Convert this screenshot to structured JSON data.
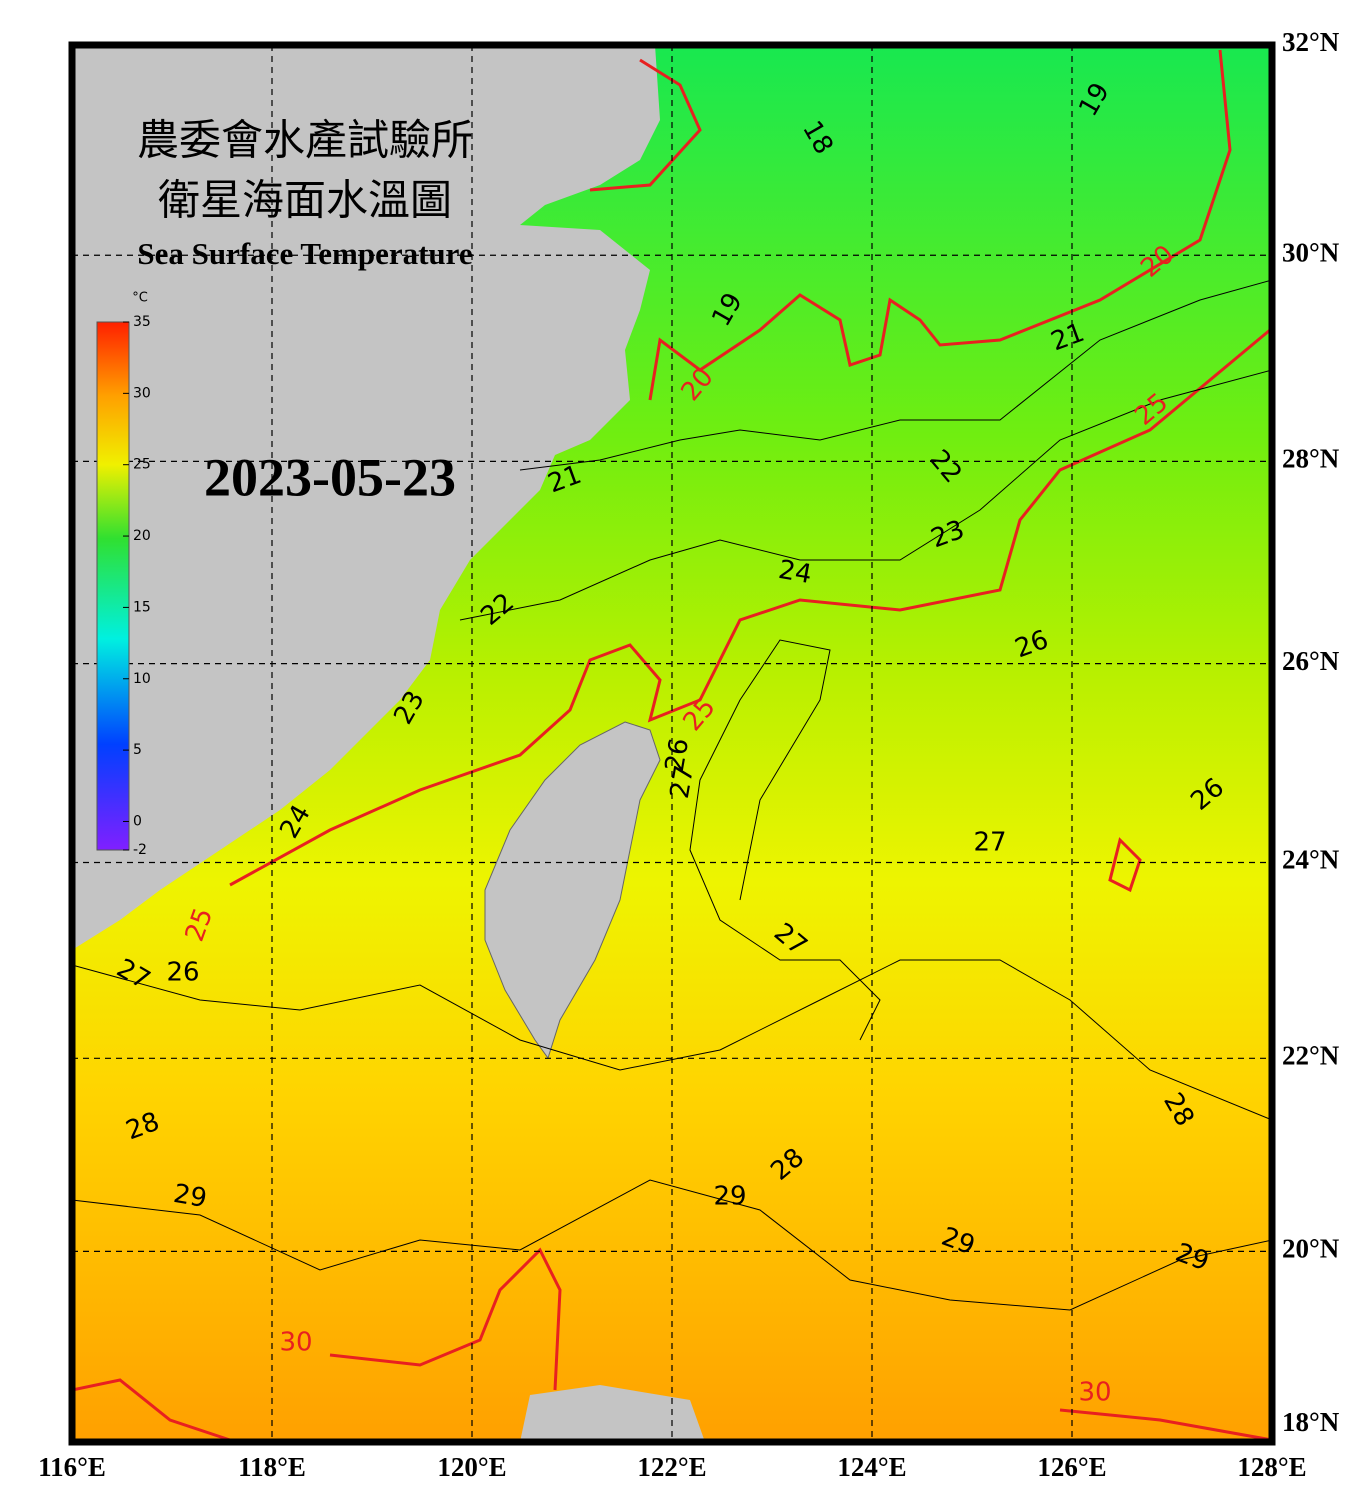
{
  "title_zh_1": "農委會水產試驗所",
  "title_zh_2": "衛星海面水溫圖",
  "title_en": "Sea Surface Temperature",
  "date": "2023-05-23",
  "colorbar": {
    "unit": "°C",
    "range": [
      -2,
      35
    ],
    "ticks": [
      35,
      30,
      25,
      20,
      15,
      10,
      5,
      0,
      -2
    ]
  },
  "lon_ticks": [
    {
      "value": 116,
      "label": "116°E"
    },
    {
      "value": 118,
      "label": "118°E"
    },
    {
      "value": 120,
      "label": "120°E"
    },
    {
      "value": 122,
      "label": "122°E"
    },
    {
      "value": 124,
      "label": "124°E"
    },
    {
      "value": 126,
      "label": "126°E"
    },
    {
      "value": 128,
      "label": "128°E"
    }
  ],
  "lat_ticks": [
    {
      "value": 32,
      "label": "32°N"
    },
    {
      "value": 30,
      "label": "30°N"
    },
    {
      "value": 28,
      "label": "28°N"
    },
    {
      "value": 26,
      "label": "26°N"
    },
    {
      "value": 24,
      "label": "24°N"
    },
    {
      "value": 22,
      "label": "22°N"
    },
    {
      "value": 20,
      "label": "20°N"
    },
    {
      "value": 18,
      "label": "18°N"
    }
  ],
  "contour_labels": [
    18,
    19,
    19,
    20,
    20,
    21,
    21,
    22,
    22,
    23,
    24,
    25,
    25,
    25,
    26,
    26,
    26,
    26,
    27,
    27,
    27,
    27,
    28,
    28,
    28,
    29,
    29,
    29,
    29,
    30,
    30,
    24,
    23
  ]
}
